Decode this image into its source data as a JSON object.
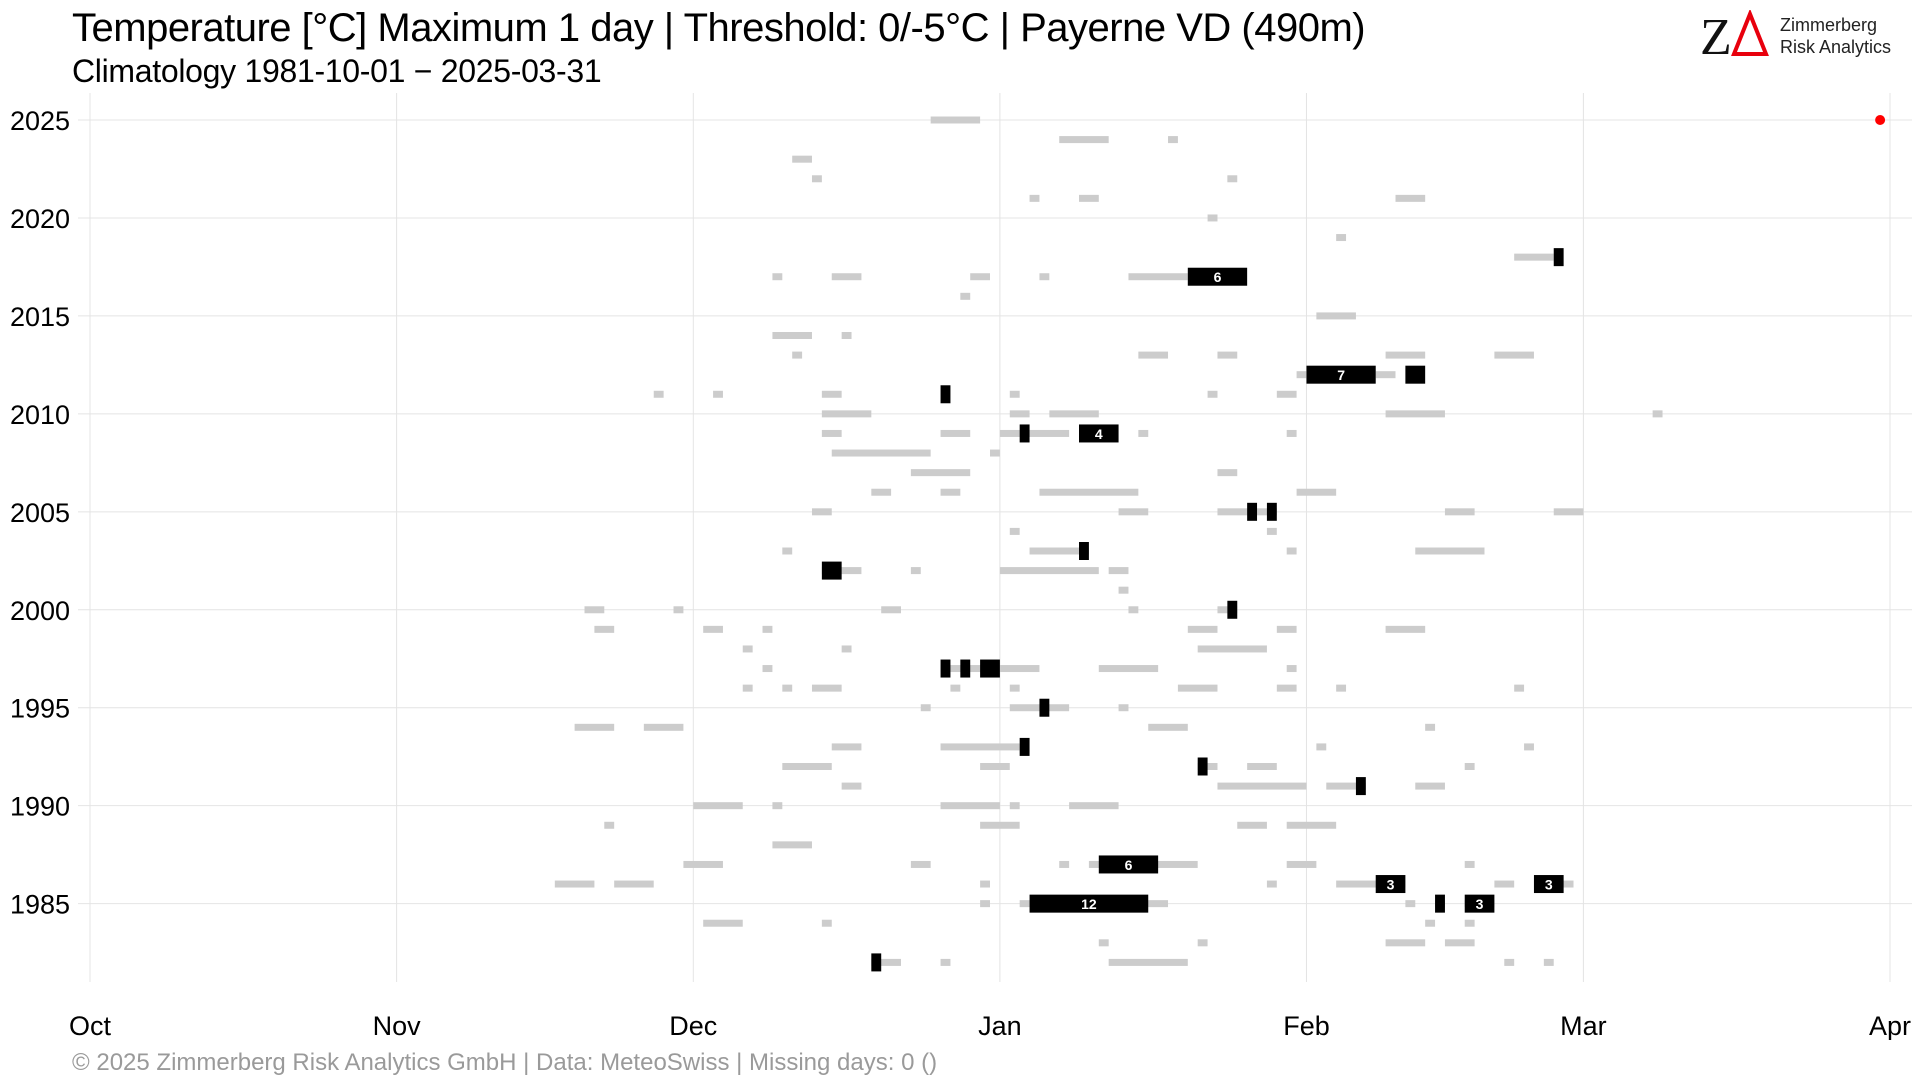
{
  "title": "Temperature [°C] Maximum 1 day | Threshold: 0/-5°C | Payerne  VD (490m)",
  "subtitle": "Climatology 1981-10-01 − 2025-03-31",
  "logo": {
    "text_line1": "Zimmerberg",
    "text_line2": "Risk Analytics",
    "mark": "ZΔ"
  },
  "footer": "©  2025 Zimmerberg Risk Analytics GmbH | Data: MeteoSwiss | Missing days: 0 ()",
  "colors": {
    "light_bar": "#cccccc",
    "dark_bar": "#000000",
    "current_dot": "#ff0000",
    "grid": "#e4e4e4",
    "logo_red": "#e8000d"
  },
  "chart_data": {
    "type": "timeline",
    "x_axis": {
      "range_days_since_oct1": [
        0,
        182
      ],
      "ticks": [
        {
          "label": "Oct",
          "day": 0
        },
        {
          "label": "Nov",
          "day": 31
        },
        {
          "label": "Dec",
          "day": 61
        },
        {
          "label": "Jan",
          "day": 92
        },
        {
          "label": "Feb",
          "day": 123
        },
        {
          "label": "Mar",
          "day": 151
        },
        {
          "label": "Apr",
          "day": 182
        }
      ]
    },
    "y_axis": {
      "range": [
        1981,
        2025
      ],
      "ticks": [
        1985,
        1990,
        1995,
        2000,
        2005,
        2010,
        2015,
        2020,
        2025
      ]
    },
    "grid": true,
    "light_runs": [
      {
        "year": 2025,
        "start": 85,
        "len": 5
      },
      {
        "year": 2024,
        "start": 98,
        "len": 5
      },
      {
        "year": 2024,
        "start": 109,
        "len": 1
      },
      {
        "year": 2023,
        "start": 71,
        "len": 2
      },
      {
        "year": 2022,
        "start": 73,
        "len": 1
      },
      {
        "year": 2022,
        "start": 115,
        "len": 1
      },
      {
        "year": 2021,
        "start": 95,
        "len": 1
      },
      {
        "year": 2021,
        "start": 100,
        "len": 2
      },
      {
        "year": 2021,
        "start": 132,
        "len": 3
      },
      {
        "year": 2020,
        "start": 113,
        "len": 1
      },
      {
        "year": 2019,
        "start": 126,
        "len": 1
      },
      {
        "year": 2018,
        "start": 144,
        "len": 4
      },
      {
        "year": 2017,
        "start": 69,
        "len": 1
      },
      {
        "year": 2017,
        "start": 75,
        "len": 3
      },
      {
        "year": 2017,
        "start": 89,
        "len": 2
      },
      {
        "year": 2017,
        "start": 96,
        "len": 1
      },
      {
        "year": 2017,
        "start": 105,
        "len": 6
      },
      {
        "year": 2016,
        "start": 88,
        "len": 1
      },
      {
        "year": 2015,
        "start": 124,
        "len": 4
      },
      {
        "year": 2014,
        "start": 69,
        "len": 4
      },
      {
        "year": 2014,
        "start": 76,
        "len": 1
      },
      {
        "year": 2013,
        "start": 71,
        "len": 1
      },
      {
        "year": 2013,
        "start": 106,
        "len": 3
      },
      {
        "year": 2013,
        "start": 114,
        "len": 2
      },
      {
        "year": 2013,
        "start": 131,
        "len": 4
      },
      {
        "year": 2013,
        "start": 142,
        "len": 4
      },
      {
        "year": 2012,
        "start": 122,
        "len": 1
      },
      {
        "year": 2012,
        "start": 130,
        "len": 2
      },
      {
        "year": 2011,
        "start": 57,
        "len": 1
      },
      {
        "year": 2011,
        "start": 63,
        "len": 1
      },
      {
        "year": 2011,
        "start": 74,
        "len": 2
      },
      {
        "year": 2011,
        "start": 93,
        "len": 1
      },
      {
        "year": 2011,
        "start": 113,
        "len": 1
      },
      {
        "year": 2011,
        "start": 120,
        "len": 2
      },
      {
        "year": 2010,
        "start": 74,
        "len": 5
      },
      {
        "year": 2010,
        "start": 93,
        "len": 2
      },
      {
        "year": 2010,
        "start": 97,
        "len": 5
      },
      {
        "year": 2010,
        "start": 131,
        "len": 6
      },
      {
        "year": 2010,
        "start": 158,
        "len": 1
      },
      {
        "year": 2009,
        "start": 74,
        "len": 2
      },
      {
        "year": 2009,
        "start": 86,
        "len": 3
      },
      {
        "year": 2009,
        "start": 92,
        "len": 7
      },
      {
        "year": 2009,
        "start": 106,
        "len": 1
      },
      {
        "year": 2009,
        "start": 121,
        "len": 1
      },
      {
        "year": 2008,
        "start": 75,
        "len": 10
      },
      {
        "year": 2008,
        "start": 91,
        "len": 1
      },
      {
        "year": 2007,
        "start": 83,
        "len": 6
      },
      {
        "year": 2007,
        "start": 114,
        "len": 2
      },
      {
        "year": 2006,
        "start": 79,
        "len": 2
      },
      {
        "year": 2006,
        "start": 86,
        "len": 2
      },
      {
        "year": 2006,
        "start": 96,
        "len": 10
      },
      {
        "year": 2006,
        "start": 122,
        "len": 4
      },
      {
        "year": 2005,
        "start": 73,
        "len": 2
      },
      {
        "year": 2005,
        "start": 104,
        "len": 3
      },
      {
        "year": 2005,
        "start": 114,
        "len": 6
      },
      {
        "year": 2005,
        "start": 137,
        "len": 3
      },
      {
        "year": 2005,
        "start": 148,
        "len": 3
      },
      {
        "year": 2004,
        "start": 93,
        "len": 1
      },
      {
        "year": 2004,
        "start": 119,
        "len": 1
      },
      {
        "year": 2003,
        "start": 70,
        "len": 1
      },
      {
        "year": 2003,
        "start": 95,
        "len": 6
      },
      {
        "year": 2003,
        "start": 121,
        "len": 1
      },
      {
        "year": 2003,
        "start": 134,
        "len": 7
      },
      {
        "year": 2002,
        "start": 74,
        "len": 4
      },
      {
        "year": 2002,
        "start": 83,
        "len": 1
      },
      {
        "year": 2002,
        "start": 92,
        "len": 10
      },
      {
        "year": 2002,
        "start": 103,
        "len": 2
      },
      {
        "year": 2001,
        "start": 104,
        "len": 1
      },
      {
        "year": 2000,
        "start": 50,
        "len": 2
      },
      {
        "year": 2000,
        "start": 59,
        "len": 1
      },
      {
        "year": 2000,
        "start": 80,
        "len": 2
      },
      {
        "year": 2000,
        "start": 105,
        "len": 1
      },
      {
        "year": 2000,
        "start": 114,
        "len": 2
      },
      {
        "year": 1999,
        "start": 51,
        "len": 2
      },
      {
        "year": 1999,
        "start": 62,
        "len": 2
      },
      {
        "year": 1999,
        "start": 68,
        "len": 1
      },
      {
        "year": 1999,
        "start": 111,
        "len": 3
      },
      {
        "year": 1999,
        "start": 120,
        "len": 2
      },
      {
        "year": 1999,
        "start": 131,
        "len": 4
      },
      {
        "year": 1998,
        "start": 66,
        "len": 1
      },
      {
        "year": 1998,
        "start": 76,
        "len": 1
      },
      {
        "year": 1998,
        "start": 112,
        "len": 7
      },
      {
        "year": 1997,
        "start": 68,
        "len": 1
      },
      {
        "year": 1997,
        "start": 86,
        "len": 10
      },
      {
        "year": 1997,
        "start": 102,
        "len": 6
      },
      {
        "year": 1997,
        "start": 121,
        "len": 1
      },
      {
        "year": 1996,
        "start": 66,
        "len": 1
      },
      {
        "year": 1996,
        "start": 70,
        "len": 1
      },
      {
        "year": 1996,
        "start": 73,
        "len": 3
      },
      {
        "year": 1996,
        "start": 87,
        "len": 1
      },
      {
        "year": 1996,
        "start": 93,
        "len": 1
      },
      {
        "year": 1996,
        "start": 110,
        "len": 4
      },
      {
        "year": 1996,
        "start": 120,
        "len": 2
      },
      {
        "year": 1996,
        "start": 126,
        "len": 1
      },
      {
        "year": 1996,
        "start": 144,
        "len": 1
      },
      {
        "year": 1995,
        "start": 84,
        "len": 1
      },
      {
        "year": 1995,
        "start": 93,
        "len": 6
      },
      {
        "year": 1995,
        "start": 104,
        "len": 1
      },
      {
        "year": 1994,
        "start": 49,
        "len": 4
      },
      {
        "year": 1994,
        "start": 56,
        "len": 4
      },
      {
        "year": 1994,
        "start": 107,
        "len": 4
      },
      {
        "year": 1994,
        "start": 135,
        "len": 1
      },
      {
        "year": 1993,
        "start": 75,
        "len": 3
      },
      {
        "year": 1993,
        "start": 86,
        "len": 8
      },
      {
        "year": 1993,
        "start": 124,
        "len": 1
      },
      {
        "year": 1993,
        "start": 145,
        "len": 1
      },
      {
        "year": 1992,
        "start": 70,
        "len": 5
      },
      {
        "year": 1992,
        "start": 90,
        "len": 3
      },
      {
        "year": 1992,
        "start": 112,
        "len": 2
      },
      {
        "year": 1992,
        "start": 117,
        "len": 3
      },
      {
        "year": 1992,
        "start": 139,
        "len": 1
      },
      {
        "year": 1991,
        "start": 76,
        "len": 2
      },
      {
        "year": 1991,
        "start": 114,
        "len": 9
      },
      {
        "year": 1991,
        "start": 125,
        "len": 4
      },
      {
        "year": 1991,
        "start": 134,
        "len": 3
      },
      {
        "year": 1990,
        "start": 61,
        "len": 5
      },
      {
        "year": 1990,
        "start": 69,
        "len": 1
      },
      {
        "year": 1990,
        "start": 86,
        "len": 6
      },
      {
        "year": 1990,
        "start": 93,
        "len": 1
      },
      {
        "year": 1990,
        "start": 99,
        "len": 5
      },
      {
        "year": 1989,
        "start": 52,
        "len": 1
      },
      {
        "year": 1989,
        "start": 90,
        "len": 4
      },
      {
        "year": 1989,
        "start": 116,
        "len": 3
      },
      {
        "year": 1989,
        "start": 121,
        "len": 5
      },
      {
        "year": 1988,
        "start": 69,
        "len": 4
      },
      {
        "year": 1987,
        "start": 60,
        "len": 4
      },
      {
        "year": 1987,
        "start": 83,
        "len": 2
      },
      {
        "year": 1987,
        "start": 98,
        "len": 1
      },
      {
        "year": 1987,
        "start": 101,
        "len": 11
      },
      {
        "year": 1987,
        "start": 121,
        "len": 3
      },
      {
        "year": 1987,
        "start": 139,
        "len": 1
      },
      {
        "year": 1986,
        "start": 47,
        "len": 4
      },
      {
        "year": 1986,
        "start": 53,
        "len": 4
      },
      {
        "year": 1986,
        "start": 90,
        "len": 1
      },
      {
        "year": 1986,
        "start": 119,
        "len": 1
      },
      {
        "year": 1986,
        "start": 126,
        "len": 7
      },
      {
        "year": 1986,
        "start": 142,
        "len": 2
      },
      {
        "year": 1986,
        "start": 146,
        "len": 4
      },
      {
        "year": 1985,
        "start": 90,
        "len": 1
      },
      {
        "year": 1985,
        "start": 94,
        "len": 15
      },
      {
        "year": 1985,
        "start": 133,
        "len": 1
      },
      {
        "year": 1985,
        "start": 136,
        "len": 1
      },
      {
        "year": 1985,
        "start": 139,
        "len": 3
      },
      {
        "year": 1984,
        "start": 62,
        "len": 4
      },
      {
        "year": 1984,
        "start": 74,
        "len": 1
      },
      {
        "year": 1984,
        "start": 135,
        "len": 1
      },
      {
        "year": 1984,
        "start": 139,
        "len": 1
      },
      {
        "year": 1983,
        "start": 102,
        "len": 1
      },
      {
        "year": 1983,
        "start": 112,
        "len": 1
      },
      {
        "year": 1983,
        "start": 131,
        "len": 4
      },
      {
        "year": 1983,
        "start": 137,
        "len": 3
      },
      {
        "year": 1982,
        "start": 79,
        "len": 3
      },
      {
        "year": 1982,
        "start": 86,
        "len": 1
      },
      {
        "year": 1982,
        "start": 103,
        "len": 8
      },
      {
        "year": 1982,
        "start": 143,
        "len": 1
      },
      {
        "year": 1982,
        "start": 147,
        "len": 1
      }
    ],
    "dark_runs": [
      {
        "year": 2018,
        "start": 148,
        "len": 1,
        "label": ""
      },
      {
        "year": 2017,
        "start": 111,
        "len": 6,
        "label": "6"
      },
      {
        "year": 2012,
        "start": 123,
        "len": 7,
        "label": "7"
      },
      {
        "year": 2012,
        "start": 133,
        "len": 2,
        "label": ""
      },
      {
        "year": 2011,
        "start": 86,
        "len": 1,
        "label": ""
      },
      {
        "year": 2009,
        "start": 94,
        "len": 1,
        "label": ""
      },
      {
        "year": 2009,
        "start": 100,
        "len": 4,
        "label": "4"
      },
      {
        "year": 2005,
        "start": 117,
        "len": 1,
        "label": ""
      },
      {
        "year": 2005,
        "start": 119,
        "len": 1,
        "label": ""
      },
      {
        "year": 2003,
        "start": 100,
        "len": 1,
        "label": ""
      },
      {
        "year": 2002,
        "start": 74,
        "len": 2,
        "label": ""
      },
      {
        "year": 2000,
        "start": 115,
        "len": 1,
        "label": ""
      },
      {
        "year": 1997,
        "start": 86,
        "len": 1,
        "label": ""
      },
      {
        "year": 1997,
        "start": 88,
        "len": 1,
        "label": ""
      },
      {
        "year": 1997,
        "start": 90,
        "len": 2,
        "label": ""
      },
      {
        "year": 1995,
        "start": 96,
        "len": 1,
        "label": ""
      },
      {
        "year": 1993,
        "start": 94,
        "len": 1,
        "label": ""
      },
      {
        "year": 1992,
        "start": 112,
        "len": 1,
        "label": ""
      },
      {
        "year": 1991,
        "start": 128,
        "len": 1,
        "label": ""
      },
      {
        "year": 1987,
        "start": 102,
        "len": 6,
        "label": "6"
      },
      {
        "year": 1986,
        "start": 130,
        "len": 3,
        "label": "3"
      },
      {
        "year": 1986,
        "start": 146,
        "len": 3,
        "label": "3"
      },
      {
        "year": 1985,
        "start": 95,
        "len": 12,
        "label": "12"
      },
      {
        "year": 1985,
        "start": 136,
        "len": 1,
        "label": ""
      },
      {
        "year": 1985,
        "start": 139,
        "len": 3,
        "label": "3"
      },
      {
        "year": 1982,
        "start": 79,
        "len": 1,
        "label": ""
      }
    ],
    "current_marker": {
      "year": 2025,
      "day": 181
    }
  }
}
